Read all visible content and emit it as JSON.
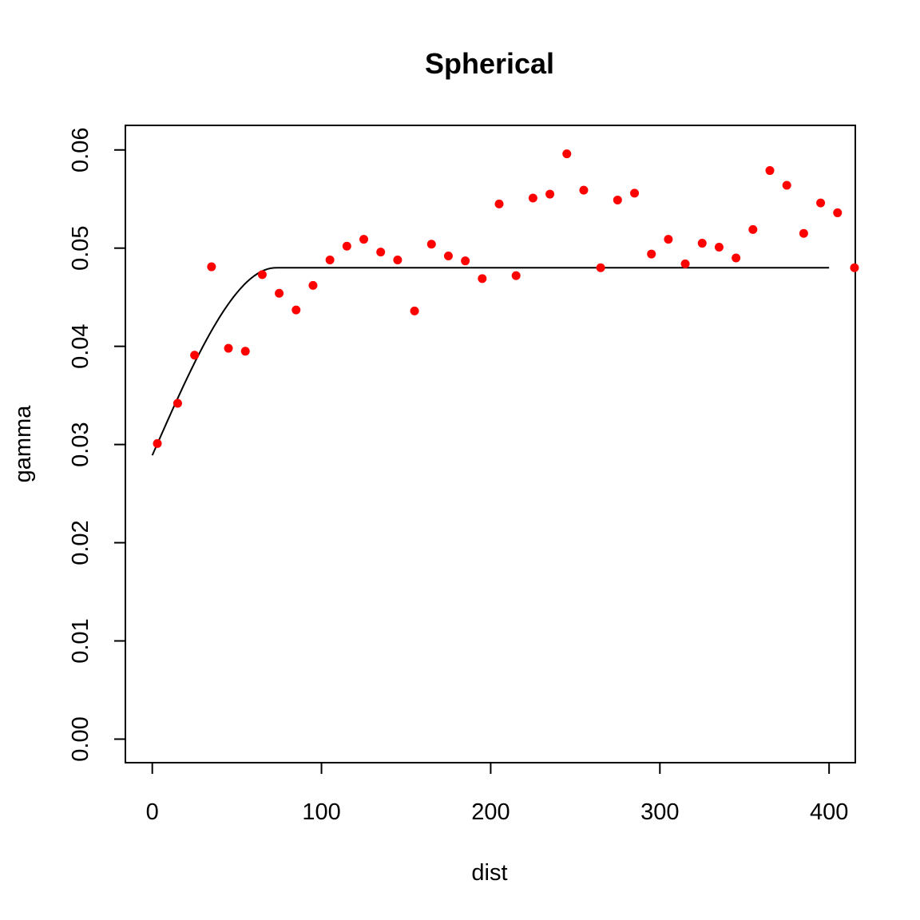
{
  "chart_data": {
    "type": "scatter",
    "title": "Spherical",
    "xlabel": "dist",
    "ylabel": "gamma",
    "xlim": [
      -15.9,
      415.5
    ],
    "ylim": [
      -0.0024,
      0.0625
    ],
    "xticks": [
      0,
      100,
      200,
      300,
      400
    ],
    "yticks": [
      0.0,
      0.01,
      0.02,
      0.03,
      0.04,
      0.05,
      0.06
    ],
    "xtick_labels": [
      "0",
      "100",
      "200",
      "300",
      "400"
    ],
    "ytick_labels": [
      "0.00",
      "0.01",
      "0.02",
      "0.03",
      "0.04",
      "0.05",
      "0.06"
    ],
    "grid": false,
    "legend": "none",
    "colors": {
      "points": "#ff0000",
      "line": "#000000"
    },
    "points": {
      "x": [
        3,
        15,
        25,
        35,
        45,
        55,
        65,
        75,
        85,
        95,
        105,
        115,
        125,
        135,
        145,
        155,
        165,
        175,
        185,
        195,
        205,
        215,
        225,
        235,
        245,
        255,
        265,
        275,
        285,
        295,
        305,
        315,
        325,
        335,
        345,
        355,
        365,
        375,
        385,
        395,
        405,
        415
      ],
      "y": [
        0.0301,
        0.0342,
        0.0391,
        0.0481,
        0.0398,
        0.0395,
        0.0473,
        0.0454,
        0.0437,
        0.0462,
        0.0488,
        0.0502,
        0.0509,
        0.0496,
        0.0488,
        0.0436,
        0.0504,
        0.0492,
        0.0487,
        0.0469,
        0.0545,
        0.0472,
        0.0551,
        0.0555,
        0.0596,
        0.0559,
        0.048,
        0.0549,
        0.0556,
        0.0494,
        0.0509,
        0.0484,
        0.0505,
        0.0501,
        0.049,
        0.0519,
        0.0579,
        0.0564,
        0.0515,
        0.0546,
        0.0536,
        0.048
      ]
    },
    "model": {
      "name": "Spherical",
      "nugget": 0.0289,
      "psill": 0.0191,
      "range": 73,
      "xmax": 400
    }
  }
}
